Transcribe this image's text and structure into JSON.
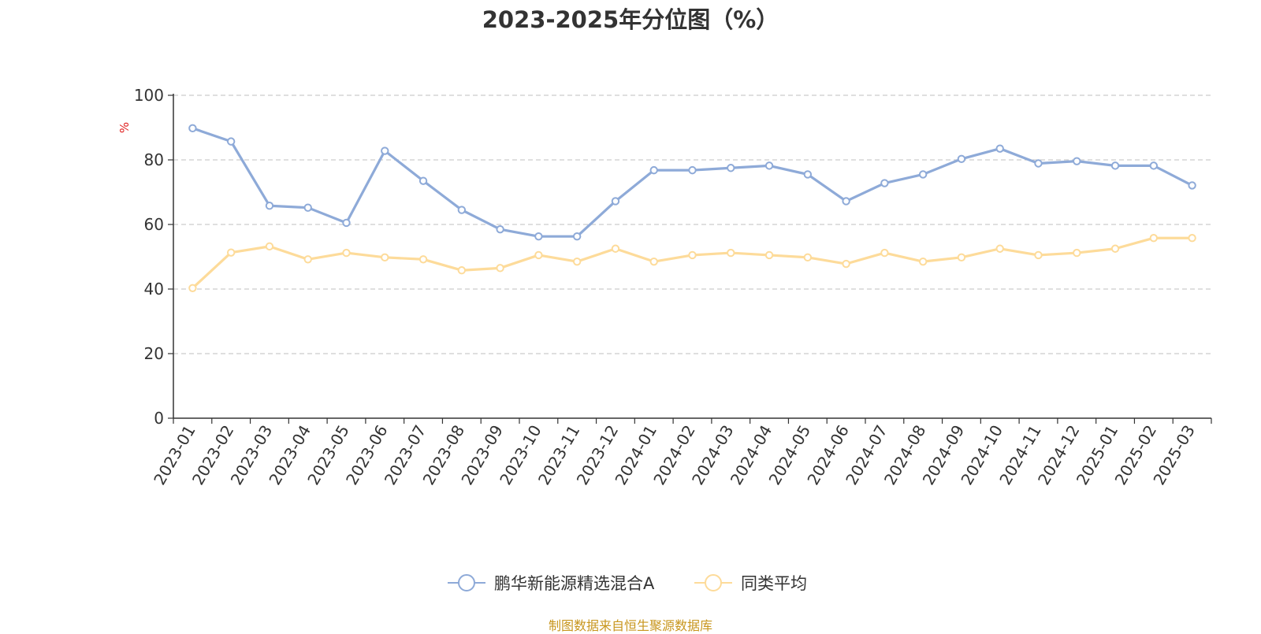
{
  "chart_data": {
    "type": "line",
    "title": "2023-2025年分位图（%）",
    "ylabel": "%",
    "xlabel": "",
    "ylim": [
      0,
      100
    ],
    "yticks": [
      0,
      20,
      40,
      60,
      80,
      100
    ],
    "grid": true,
    "legend_position": "bottom-center",
    "categories": [
      "2023-01",
      "2023-02",
      "2023-03",
      "2023-04",
      "2023-05",
      "2023-06",
      "2023-07",
      "2023-08",
      "2023-09",
      "2023-10",
      "2023-11",
      "2023-12",
      "2024-01",
      "2024-02",
      "2024-03",
      "2024-04",
      "2024-05",
      "2024-06",
      "2024-07",
      "2024-08",
      "2024-09",
      "2024-10",
      "2024-11",
      "2024-12",
      "2025-01",
      "2025-02",
      "2025-03"
    ],
    "series": [
      {
        "name": "鹏华新能源精选混合A",
        "color": "#8eaad8",
        "values": [
          89.8,
          85.7,
          65.8,
          65.2,
          60.5,
          82.8,
          73.5,
          64.5,
          58.5,
          56.3,
          56.3,
          67.2,
          76.8,
          76.8,
          77.5,
          78.2,
          75.5,
          67.2,
          72.8,
          75.5,
          80.3,
          83.5,
          78.9,
          79.6,
          78.2,
          78.2,
          72.1
        ]
      },
      {
        "name": "同类平均",
        "color": "#fddb9a",
        "values": [
          40.3,
          51.3,
          53.2,
          49.2,
          51.2,
          49.8,
          49.2,
          45.8,
          46.5,
          50.5,
          48.5,
          52.5,
          48.5,
          50.5,
          51.2,
          50.5,
          49.8,
          47.8,
          51.2,
          48.5,
          49.8,
          52.5,
          50.5,
          51.2,
          52.5,
          55.8,
          55.8
        ]
      }
    ]
  },
  "footer": {
    "source": "制图数据来自恒生聚源数据库"
  }
}
